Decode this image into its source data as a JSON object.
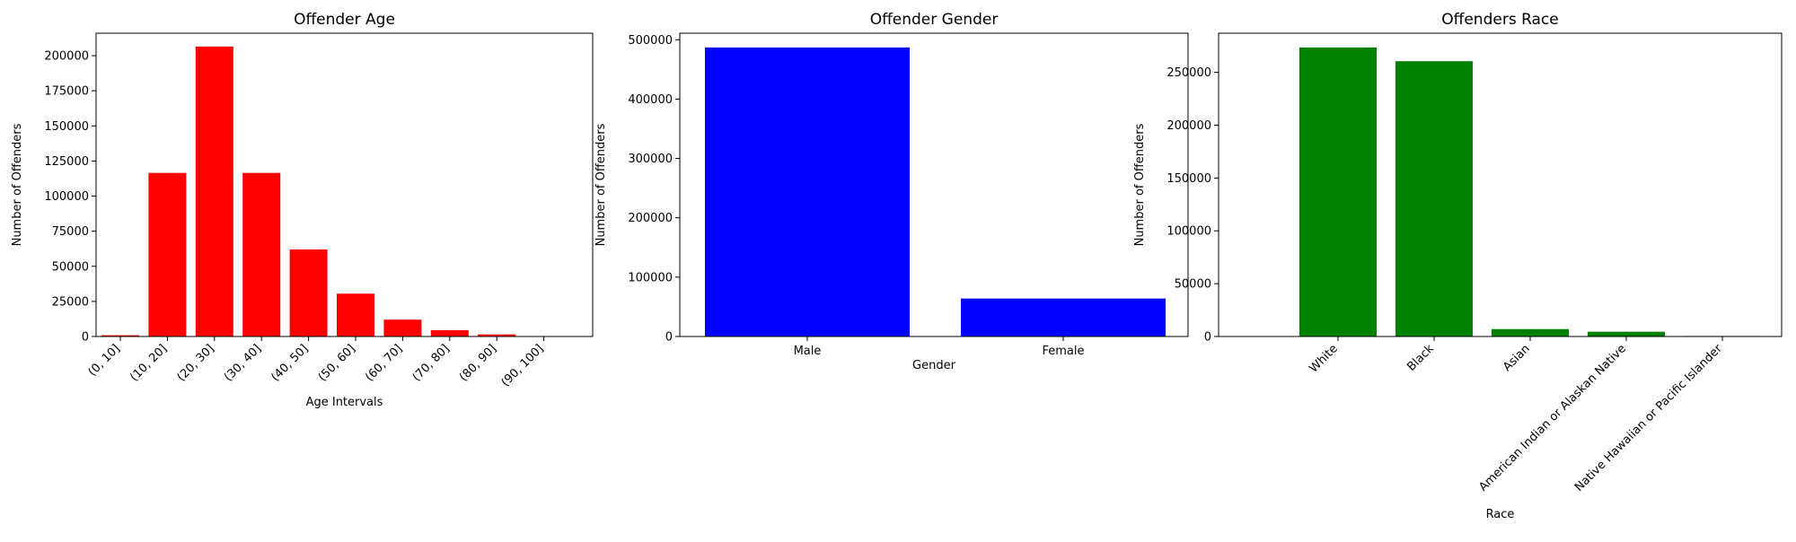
{
  "chart_data": [
    {
      "type": "bar",
      "title": "Offender Age",
      "xlabel": "Age Intervals",
      "ylabel": "Number of Offenders",
      "categories": [
        "(0, 10]",
        "(10, 20]",
        "(20, 30]",
        "(30, 40]",
        "(40, 50]",
        "(50, 60]",
        "(60, 70]",
        "(70, 80]",
        "(80, 90]",
        "(90, 100]"
      ],
      "values": [
        900,
        116500,
        206500,
        116500,
        62000,
        30500,
        12000,
        4500,
        1500,
        300
      ],
      "ylim": [
        0,
        216000
      ],
      "yticks": [
        0,
        25000,
        50000,
        75000,
        100000,
        125000,
        150000,
        175000,
        200000
      ],
      "color": "#ff0000",
      "xtick_rotation": 45,
      "grid": false
    },
    {
      "type": "bar",
      "title": "Offender Gender",
      "xlabel": "Gender",
      "ylabel": "Number of Offenders",
      "categories": [
        "Male",
        "Female"
      ],
      "values": [
        487000,
        64000
      ],
      "ylim": [
        0,
        511000
      ],
      "yticks": [
        0,
        100000,
        200000,
        300000,
        400000,
        500000
      ],
      "color": "#0000ff",
      "xtick_rotation": 0,
      "grid": false
    },
    {
      "type": "bar",
      "title": "Offenders Race",
      "xlabel": "Race",
      "ylabel": "Number of Offenders",
      "categories": [
        "White",
        "Black",
        "Asian",
        "American Indian or Alaskan Native",
        "Native Hawaiian or Pacific Islander"
      ],
      "values": [
        273500,
        260500,
        7000,
        4500,
        500
      ],
      "ylim": [
        0,
        287000
      ],
      "yticks": [
        0,
        50000,
        100000,
        150000,
        200000,
        250000
      ],
      "color": "#008000",
      "xtick_rotation": 45,
      "grid": false
    }
  ]
}
